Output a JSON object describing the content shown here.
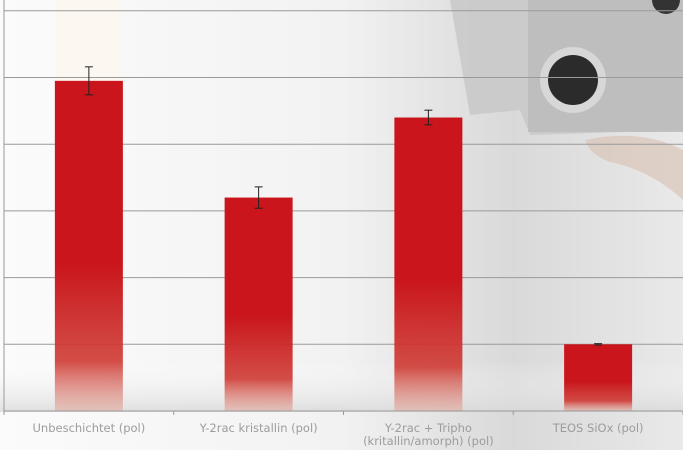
{
  "chart_data": {
    "type": "bar",
    "categories": [
      [
        "Unbeschichtet (pol)"
      ],
      [
        "Y-2rac kristallin (pol)"
      ],
      [
        "Y-2rac + Tripho",
        "(kritallin/amorph) (pol)"
      ],
      [
        "TEOS SiOx (pol)"
      ]
    ],
    "values": [
      4.95,
      3.2,
      4.4,
      1.0
    ],
    "errors": [
      0.21,
      0.16,
      0.11,
      0.01
    ],
    "ylim": [
      0,
      6
    ],
    "ytick_count": 6,
    "grid": true,
    "bar_color": "#c8141a",
    "grid_color": "#9a9a9a",
    "label_color": "#9c9c9c"
  }
}
